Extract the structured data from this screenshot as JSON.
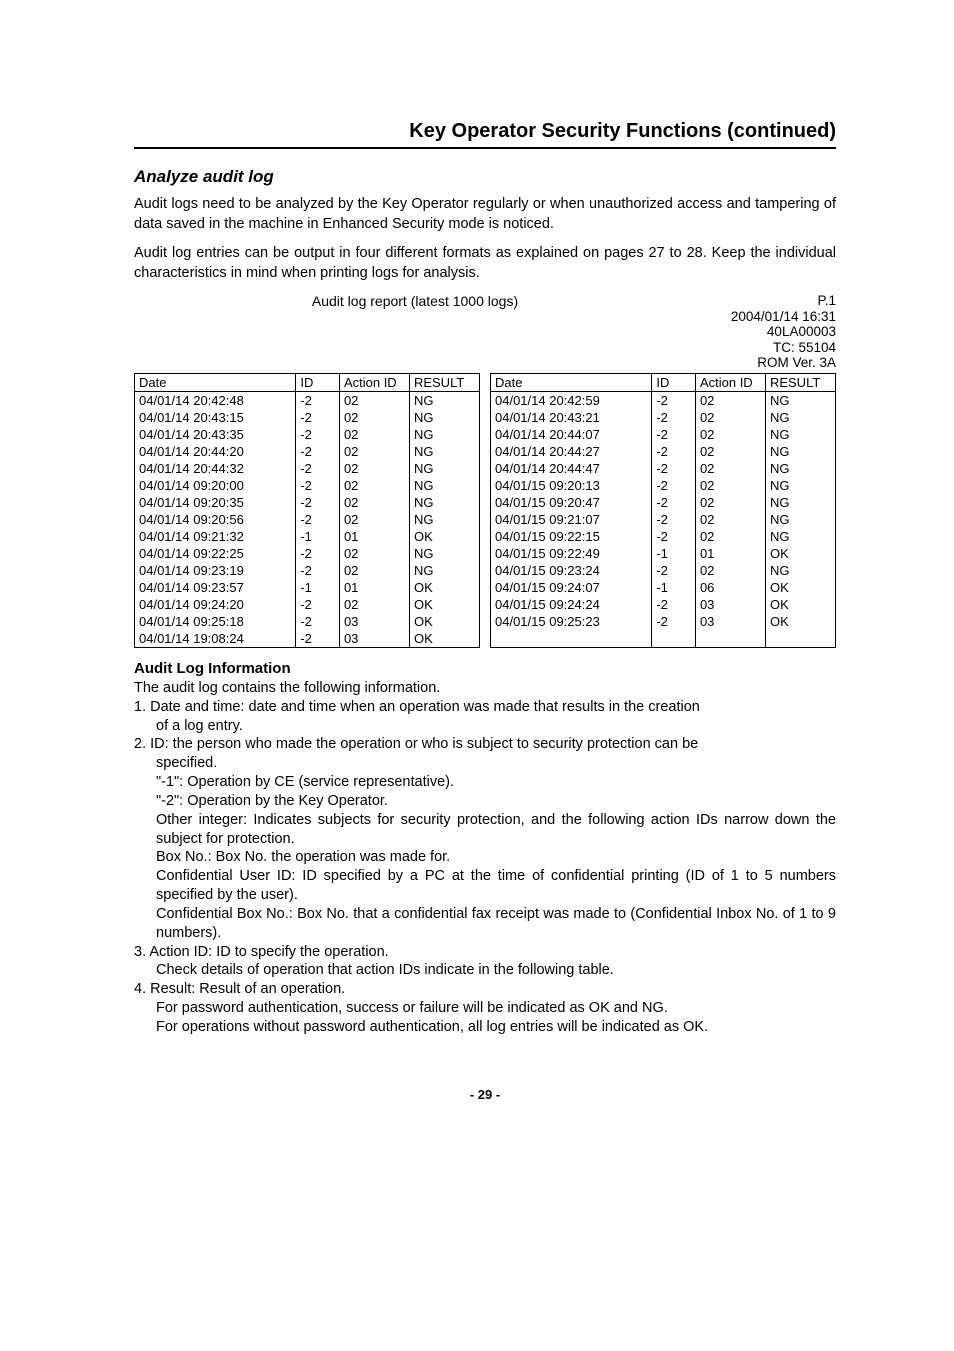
{
  "page": {
    "section_title": "Key Operator Security Functions (continued)",
    "subheading": "Analyze audit log",
    "intro_para_1": "Audit logs need to be analyzed by the Key Operator regularly or when unauthorized access and tampering of data saved in the machine in Enhanced Security mode is noticed.",
    "intro_para_2": "Audit log entries can be output in four different formats as explained on pages 27 to 28. Keep the individual characteristics in mind when printing logs for analysis.",
    "page_number": "- 29 -"
  },
  "report": {
    "title": "Audit log report (latest 1000 logs)",
    "meta_lines": [
      "P.1",
      "2004/01/14 16:31",
      "40LA00003",
      "TC: 55104",
      "ROM Ver. 3A"
    ]
  },
  "table": {
    "columns": [
      "Date",
      "ID",
      "Action ID",
      "RESULT"
    ],
    "left_rows": [
      [
        "04/01/14 20:42:48",
        "-2",
        "02",
        "NG"
      ],
      [
        "04/01/14 20:43:15",
        "-2",
        "02",
        "NG"
      ],
      [
        "04/01/14 20:43:35",
        "-2",
        "02",
        "NG"
      ],
      [
        "04/01/14 20:44:20",
        "-2",
        "02",
        "NG"
      ],
      [
        "04/01/14 20:44:32",
        "-2",
        "02",
        "NG"
      ],
      [
        "04/01/14 09:20:00",
        "-2",
        "02",
        "NG"
      ],
      [
        "04/01/14 09:20:35",
        "-2",
        "02",
        "NG"
      ],
      [
        "04/01/14 09:20:56",
        "-2",
        "02",
        "NG"
      ],
      [
        "04/01/14 09:21:32",
        "-1",
        "01",
        "OK"
      ],
      [
        "04/01/14 09:22:25",
        "-2",
        "02",
        "NG"
      ],
      [
        "04/01/14 09:23:19",
        "-2",
        "02",
        "NG"
      ],
      [
        "04/01/14 09:23:57",
        "-1",
        "01",
        "OK"
      ],
      [
        "04/01/14 09:24:20",
        "-2",
        "02",
        "OK"
      ],
      [
        "04/01/14 09:25:18",
        "-2",
        "03",
        "OK"
      ],
      [
        "04/01/14 19:08:24",
        "-2",
        "03",
        "OK"
      ]
    ],
    "right_rows": [
      [
        "04/01/14 20:42:59",
        "-2",
        "02",
        "NG"
      ],
      [
        "04/01/14 20:43:21",
        "-2",
        "02",
        "NG"
      ],
      [
        "04/01/14 20:44:07",
        "-2",
        "02",
        "NG"
      ],
      [
        "04/01/14 20:44:27",
        "-2",
        "02",
        "NG"
      ],
      [
        "04/01/14 20:44:47",
        "-2",
        "02",
        "NG"
      ],
      [
        "04/01/15 09:20:13",
        "-2",
        "02",
        "NG"
      ],
      [
        "04/01/15 09:20:47",
        "-2",
        "02",
        "NG"
      ],
      [
        "04/01/15 09:21:07",
        "-2",
        "02",
        "NG"
      ],
      [
        "04/01/15 09:22:15",
        "-2",
        "02",
        "NG"
      ],
      [
        "04/01/15 09:22:49",
        "-1",
        "01",
        "OK"
      ],
      [
        "04/01/15 09:23:24",
        "-2",
        "02",
        "NG"
      ],
      [
        "04/01/15 09:24:07",
        "-1",
        "06",
        "OK"
      ],
      [
        "04/01/15 09:24:24",
        "-2",
        "03",
        "OK"
      ],
      [
        "04/01/15 09:25:23",
        "-2",
        "03",
        "OK"
      ],
      [
        "",
        "",
        "",
        ""
      ]
    ]
  },
  "info": {
    "heading": "Audit Log Information",
    "intro": "The audit log contains the following information.",
    "item1_a": "1. Date and time: date and time when an operation was made that results in the creation",
    "item1_b": "of a log entry.",
    "item2_a": "2. ID: the person who made the operation or who is subject to security protection can be",
    "item2_b": "specified.",
    "item2_c": "\"-1\": Operation by CE (service representative).",
    "item2_d": "\"-2\": Operation by the Key Operator.",
    "item2_e": "Other integer: Indicates subjects for security protection, and the following action IDs narrow down the subject for protection.",
    "item2_f": "Box No.: Box No. the operation was made for.",
    "item2_g": "Confidential User ID: ID specified by a PC at the time of confidential printing (ID of 1 to 5 numbers specified by the user).",
    "item2_h": "Confidential Box No.: Box No. that a confidential fax receipt was made to (Confidential Inbox No. of 1 to 9 numbers).",
    "item3_a": "3. Action ID: ID to specify the operation.",
    "item3_b": "Check details of operation that action IDs indicate in the following table.",
    "item4_a": "4. Result: Result of an operation.",
    "item4_b": "For password authentication, success or failure will be indicated as OK and NG.",
    "item4_c": "For operations without password authentication, all log entries will be indicated as OK."
  }
}
